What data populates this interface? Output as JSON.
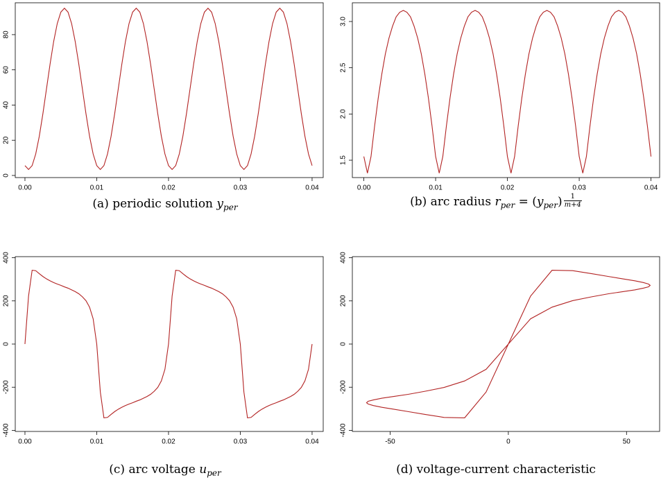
{
  "chart_data": [
    {
      "type": "line",
      "caption": [
        {
          "text": "(a) periodic solution ",
          "style": "rm"
        },
        {
          "text": "y",
          "style": "it"
        },
        {
          "text": "per",
          "style": "sub"
        }
      ],
      "x": [
        0,
        0.0005,
        0.001,
        0.0015,
        0.002,
        0.0025,
        0.003,
        0.0035,
        0.004,
        0.0045,
        0.005,
        0.0055,
        0.006,
        0.0065,
        0.007,
        0.0075,
        0.008,
        0.0085,
        0.009,
        0.0095,
        0.01,
        0.0105,
        0.011,
        0.0115,
        0.012,
        0.0125,
        0.013,
        0.0135,
        0.014,
        0.0145,
        0.015,
        0.0155,
        0.016,
        0.0165,
        0.017,
        0.0175,
        0.018,
        0.0185,
        0.019,
        0.0195,
        0.02,
        0.0205,
        0.021,
        0.0215,
        0.022,
        0.0225,
        0.023,
        0.0235,
        0.024,
        0.0245,
        0.025,
        0.0255,
        0.026,
        0.0265,
        0.027,
        0.0275,
        0.028,
        0.0285,
        0.029,
        0.0295,
        0.03,
        0.0305,
        0.031,
        0.0315,
        0.032,
        0.0325,
        0.033,
        0.0335,
        0.034,
        0.0345,
        0.035,
        0.0355,
        0.036,
        0.0365,
        0.037,
        0.0375,
        0.038,
        0.0385,
        0.039,
        0.0395,
        0.04
      ],
      "series": [
        {
          "color": "#b22222",
          "values": [
            5.6,
            3.4,
            5.6,
            12.2,
            22.3,
            35.1,
            49.2,
            63.3,
            76.1,
            86.3,
            92.8,
            95.0,
            92.8,
            86.3,
            76.1,
            63.3,
            49.2,
            35.1,
            22.3,
            12.2,
            5.6,
            3.4,
            5.6,
            12.2,
            22.3,
            35.1,
            49.2,
            63.3,
            76.1,
            86.3,
            92.8,
            95.0,
            92.8,
            86.3,
            76.1,
            63.3,
            49.2,
            35.1,
            22.3,
            12.2,
            5.6,
            3.4,
            5.6,
            12.2,
            22.3,
            35.1,
            49.2,
            63.3,
            76.1,
            86.3,
            92.8,
            95.0,
            92.8,
            86.3,
            76.1,
            63.3,
            49.2,
            35.1,
            22.3,
            12.2,
            5.6,
            3.4,
            5.6,
            12.2,
            22.3,
            35.1,
            49.2,
            63.3,
            76.1,
            86.3,
            92.8,
            95.0,
            92.8,
            86.3,
            76.1,
            63.3,
            49.2,
            35.1,
            22.3,
            12.2,
            5.6
          ]
        }
      ],
      "xlim": [
        -0.00135,
        0.04155
      ],
      "ylim": [
        -1.2,
        98.1
      ],
      "xticks": [
        {
          "value": 0,
          "label": "0.00"
        },
        {
          "value": 0.01,
          "label": "0.01"
        },
        {
          "value": 0.02,
          "label": "0.02"
        },
        {
          "value": 0.03,
          "label": "0.03"
        },
        {
          "value": 0.04,
          "label": "0.04"
        }
      ],
      "yticks": [
        0,
        20,
        40,
        60,
        80
      ]
    },
    {
      "type": "line",
      "caption": [
        {
          "text": "(b) arc radius ",
          "style": "rm"
        },
        {
          "text": "r",
          "style": "it"
        },
        {
          "text": "per",
          "style": "sub"
        },
        {
          "text": " = (",
          "style": "rm"
        },
        {
          "text": "y",
          "style": "it"
        },
        {
          "text": "per",
          "style": "sub"
        },
        {
          "text": ")",
          "style": "rm"
        },
        {
          "text": "1",
          "style": "num"
        },
        {
          "text": "m+4",
          "style": "den"
        }
      ],
      "x": [
        0,
        0.0005,
        0.001,
        0.0015,
        0.002,
        0.0025,
        0.003,
        0.0035,
        0.004,
        0.0045,
        0.005,
        0.0055,
        0.006,
        0.0065,
        0.007,
        0.0075,
        0.008,
        0.0085,
        0.009,
        0.0095,
        0.01,
        0.0105,
        0.011,
        0.0115,
        0.012,
        0.0125,
        0.013,
        0.0135,
        0.014,
        0.0145,
        0.015,
        0.0155,
        0.016,
        0.0165,
        0.017,
        0.0175,
        0.018,
        0.0185,
        0.019,
        0.0195,
        0.02,
        0.0205,
        0.021,
        0.0215,
        0.022,
        0.0225,
        0.023,
        0.0235,
        0.024,
        0.0245,
        0.025,
        0.0255,
        0.026,
        0.0265,
        0.027,
        0.0275,
        0.028,
        0.0285,
        0.029,
        0.0295,
        0.03,
        0.0305,
        0.031,
        0.0315,
        0.032,
        0.0325,
        0.033,
        0.0335,
        0.034,
        0.0345,
        0.035,
        0.0355,
        0.036,
        0.0365,
        0.037,
        0.0375,
        0.038,
        0.0385,
        0.039,
        0.0395,
        0.04
      ],
      "series": [
        {
          "color": "#b22222",
          "values": [
            1.54,
            1.36,
            1.54,
            1.87,
            2.17,
            2.43,
            2.65,
            2.82,
            2.95,
            3.05,
            3.1,
            3.12,
            3.1,
            3.05,
            2.95,
            2.82,
            2.65,
            2.43,
            2.17,
            1.87,
            1.54,
            1.36,
            1.54,
            1.87,
            2.17,
            2.43,
            2.65,
            2.82,
            2.95,
            3.05,
            3.1,
            3.12,
            3.1,
            3.05,
            2.95,
            2.82,
            2.65,
            2.43,
            2.17,
            1.87,
            1.54,
            1.36,
            1.54,
            1.87,
            2.17,
            2.43,
            2.65,
            2.82,
            2.95,
            3.05,
            3.1,
            3.12,
            3.1,
            3.05,
            2.95,
            2.82,
            2.65,
            2.43,
            2.17,
            1.87,
            1.54,
            1.36,
            1.54,
            1.87,
            2.17,
            2.43,
            2.65,
            2.82,
            2.95,
            3.05,
            3.1,
            3.12,
            3.1,
            3.05,
            2.95,
            2.82,
            2.65,
            2.43,
            2.17,
            1.87,
            1.54
          ]
        }
      ],
      "xlim": [
        -0.0016,
        0.0412
      ],
      "ylim": [
        1.3125,
        3.2025
      ],
      "xticks": [
        {
          "value": 0,
          "label": "0.00"
        },
        {
          "value": 0.01,
          "label": "0.01"
        },
        {
          "value": 0.02,
          "label": "0.02"
        },
        {
          "value": 0.03,
          "label": "0.03"
        },
        {
          "value": 0.04,
          "label": "0.04"
        }
      ],
      "yticks": [
        1.5,
        {
          "value": 2,
          "label": "2.0"
        },
        2.5,
        {
          "value": 3,
          "label": "3.0"
        }
      ]
    },
    {
      "type": "line",
      "caption": [
        {
          "text": "(c) arc voltage ",
          "style": "rm"
        },
        {
          "text": "u",
          "style": "it"
        },
        {
          "text": "per",
          "style": "sub"
        }
      ],
      "x": [
        0,
        0.0005,
        0.001,
        0.0015,
        0.002,
        0.0025,
        0.003,
        0.0035,
        0.004,
        0.0045,
        0.005,
        0.0055,
        0.006,
        0.0065,
        0.007,
        0.0075,
        0.008,
        0.0085,
        0.009,
        0.0095,
        0.01,
        0.0105,
        0.011,
        0.0115,
        0.012,
        0.0125,
        0.013,
        0.0135,
        0.014,
        0.0145,
        0.015,
        0.0155,
        0.016,
        0.0165,
        0.017,
        0.0175,
        0.018,
        0.0185,
        0.019,
        0.0195,
        0.02,
        0.0205,
        0.021,
        0.0215,
        0.022,
        0.0225,
        0.023,
        0.0235,
        0.024,
        0.0245,
        0.025,
        0.0255,
        0.026,
        0.0265,
        0.027,
        0.0275,
        0.028,
        0.0285,
        0.029,
        0.0295,
        0.03,
        0.0305,
        0.031,
        0.0315,
        0.032,
        0.0325,
        0.033,
        0.0335,
        0.034,
        0.0345,
        0.035,
        0.0355,
        0.036,
        0.0365,
        0.037,
        0.0375,
        0.038,
        0.0385,
        0.039,
        0.0395,
        0.04
      ],
      "series": [
        {
          "color": "#b22222",
          "values": [
            0,
            222,
            342,
            340,
            326,
            313,
            302,
            293,
            285,
            278,
            272,
            265,
            259,
            251,
            243,
            233,
            219,
            201,
            171,
            117,
            0,
            -222,
            -342,
            -340,
            -326,
            -313,
            -302,
            -293,
            -285,
            -278,
            -272,
            -265,
            -259,
            -251,
            -243,
            -233,
            -219,
            -201,
            -171,
            -117,
            0,
            222,
            342,
            340,
            326,
            313,
            302,
            293,
            285,
            278,
            272,
            265,
            259,
            251,
            243,
            233,
            219,
            201,
            171,
            117,
            0,
            -222,
            -342,
            -340,
            -326,
            -313,
            -302,
            -293,
            -285,
            -278,
            -272,
            -265,
            -259,
            -251,
            -243,
            -233,
            -219,
            -201,
            -171,
            -117,
            0
          ]
        }
      ],
      "xlim": [
        -0.00135,
        0.04155
      ],
      "ylim": [
        -405,
        405
      ],
      "xticks": [
        {
          "value": 0,
          "label": "0.00"
        },
        {
          "value": 0.01,
          "label": "0.01"
        },
        {
          "value": 0.02,
          "label": "0.02"
        },
        {
          "value": 0.03,
          "label": "0.03"
        },
        {
          "value": 0.04,
          "label": "0.04"
        }
      ],
      "yticks": [
        400,
        200,
        0,
        -200,
        -400
      ]
    },
    {
      "type": "line",
      "caption": [
        {
          "text": "(d) voltage-current characteristic",
          "style": "rm"
        }
      ],
      "x": [
        0,
        9.4,
        18.5,
        27.2,
        35.3,
        42.4,
        48.5,
        53.5,
        57.1,
        59.3,
        60,
        59.3,
        57.1,
        53.5,
        48.5,
        42.4,
        35.3,
        27.2,
        18.5,
        9.4,
        0,
        -9.4,
        -18.5,
        -27.2,
        -35.3,
        -42.4,
        -48.5,
        -53.5,
        -57.1,
        -59.3,
        -60,
        -59.3,
        -57.1,
        -53.5,
        -48.5,
        -42.4,
        -35.3,
        -27.2,
        -18.5,
        -9.4,
        0
      ],
      "series": [
        {
          "color": "#b22222",
          "values": [
            0,
            222,
            342,
            340,
            326,
            313,
            302,
            293,
            285,
            278,
            272,
            265,
            259,
            251,
            243,
            233,
            219,
            201,
            171,
            117,
            0,
            -222,
            -342,
            -340,
            -326,
            -313,
            -302,
            -293,
            -285,
            -278,
            -272,
            -265,
            -259,
            -251,
            -243,
            -233,
            -219,
            -201,
            -171,
            -117,
            0
          ]
        }
      ],
      "xlim": [
        -66,
        64
      ],
      "ylim": [
        -405,
        405
      ],
      "xticks": [
        -50,
        0,
        50
      ],
      "yticks": [
        400,
        200,
        0,
        -200,
        -400
      ]
    }
  ]
}
